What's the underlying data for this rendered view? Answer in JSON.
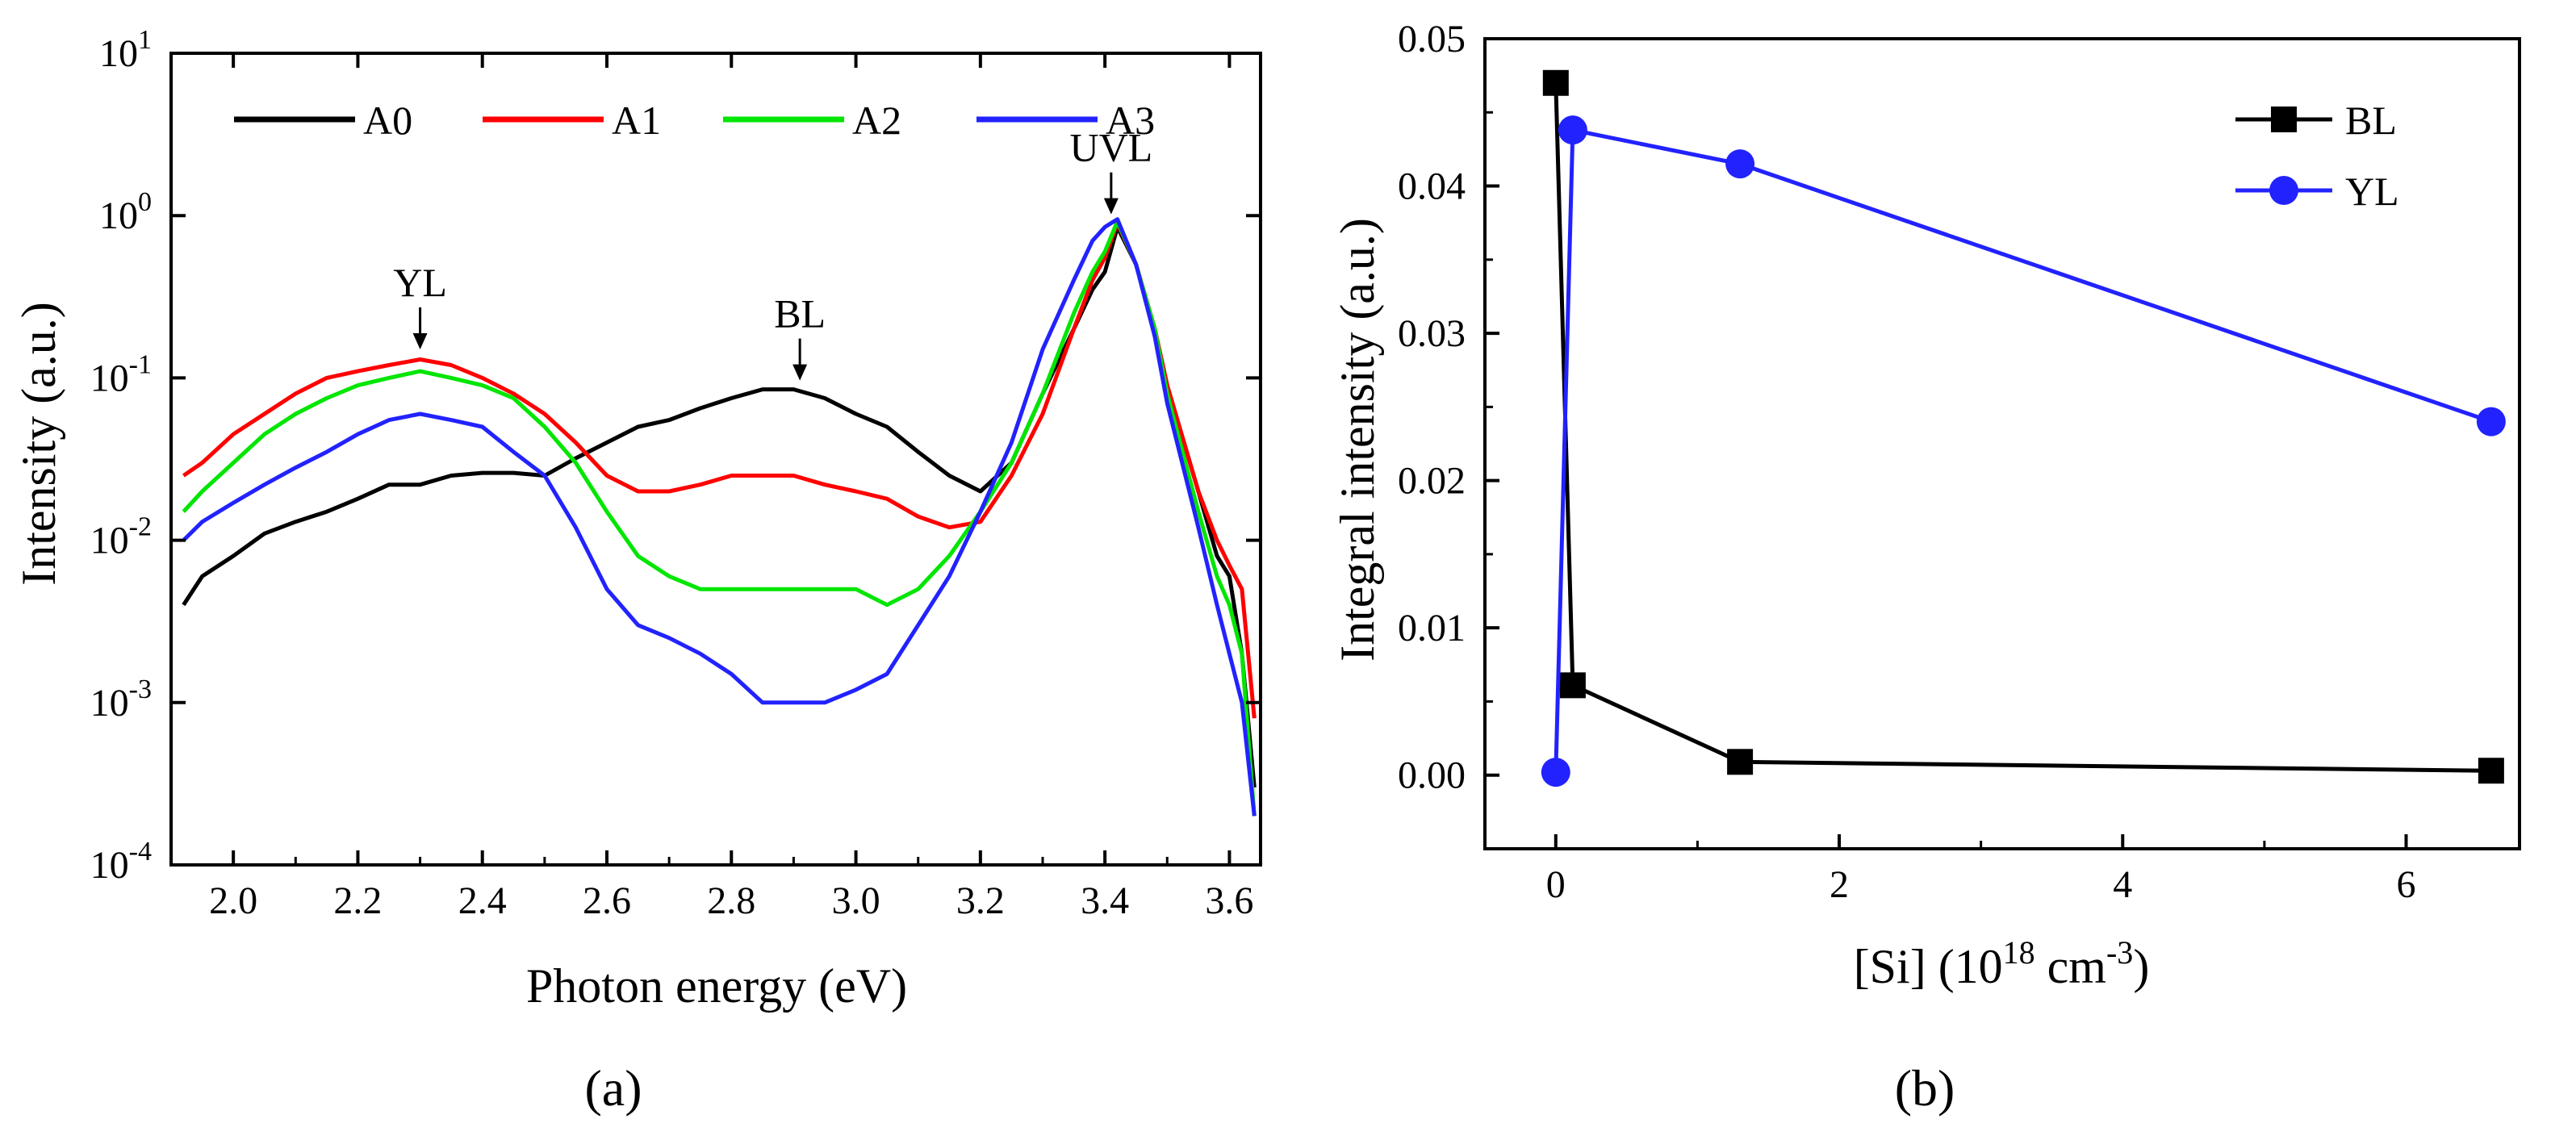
{
  "chart_data": [
    {
      "id": "a",
      "type": "line",
      "title": "",
      "caption": "(a)",
      "xlabel": "Photon energy (eV)",
      "ylabel": "Intensity (a.u.)",
      "yscale": "log",
      "xlim": [
        1.9,
        3.65
      ],
      "ylim": [
        0.0001,
        10
      ],
      "grid": false,
      "legend_position": "top",
      "x_ticks": [
        {
          "value": 2.0,
          "label": "2.0"
        },
        {
          "value": 2.2,
          "label": "2.2"
        },
        {
          "value": 2.4,
          "label": "2.4"
        },
        {
          "value": 2.6,
          "label": "2.6"
        },
        {
          "value": 2.8,
          "label": "2.8"
        },
        {
          "value": 3.0,
          "label": "3.0"
        },
        {
          "value": 3.2,
          "label": "3.2"
        },
        {
          "value": 3.4,
          "label": "3.4"
        },
        {
          "value": 3.6,
          "label": "3.6"
        }
      ],
      "y_ticks": [
        {
          "value": 10,
          "base": "10",
          "exp": "1"
        },
        {
          "value": 1,
          "base": "10",
          "exp": "0"
        },
        {
          "value": 0.1,
          "base": "10",
          "exp": "-1"
        },
        {
          "value": 0.01,
          "base": "10",
          "exp": "-2"
        },
        {
          "value": 0.001,
          "base": "10",
          "exp": "-3"
        },
        {
          "value": 0.0001,
          "base": "10",
          "exp": "-4"
        }
      ],
      "series": [
        {
          "name": "A0",
          "color": "#000000",
          "x": [
            1.92,
            1.95,
            2.0,
            2.05,
            2.1,
            2.15,
            2.2,
            2.25,
            2.3,
            2.35,
            2.4,
            2.45,
            2.5,
            2.55,
            2.6,
            2.65,
            2.7,
            2.75,
            2.8,
            2.85,
            2.9,
            2.95,
            3.0,
            3.05,
            3.1,
            3.15,
            3.2,
            3.25,
            3.3,
            3.35,
            3.38,
            3.4,
            3.42,
            3.45,
            3.48,
            3.5,
            3.55,
            3.58,
            3.6,
            3.62,
            3.64
          ],
          "y": [
            0.004,
            0.006,
            0.008,
            0.011,
            0.013,
            0.015,
            0.018,
            0.022,
            0.022,
            0.025,
            0.026,
            0.026,
            0.025,
            0.032,
            0.04,
            0.05,
            0.055,
            0.065,
            0.075,
            0.085,
            0.085,
            0.075,
            0.06,
            0.05,
            0.035,
            0.025,
            0.02,
            0.03,
            0.08,
            0.2,
            0.35,
            0.45,
            0.85,
            0.5,
            0.2,
            0.09,
            0.02,
            0.008,
            0.006,
            0.002,
            0.0003
          ]
        },
        {
          "name": "A1",
          "color": "#ff0000",
          "x": [
            1.92,
            1.95,
            2.0,
            2.05,
            2.1,
            2.15,
            2.2,
            2.25,
            2.3,
            2.35,
            2.4,
            2.45,
            2.5,
            2.55,
            2.6,
            2.65,
            2.7,
            2.75,
            2.8,
            2.85,
            2.9,
            2.95,
            3.0,
            3.05,
            3.1,
            3.15,
            3.2,
            3.25,
            3.3,
            3.35,
            3.38,
            3.4,
            3.42,
            3.45,
            3.48,
            3.5,
            3.55,
            3.58,
            3.6,
            3.62,
            3.64
          ],
          "y": [
            0.025,
            0.03,
            0.045,
            0.06,
            0.08,
            0.1,
            0.11,
            0.12,
            0.13,
            0.12,
            0.1,
            0.08,
            0.06,
            0.04,
            0.025,
            0.02,
            0.02,
            0.022,
            0.025,
            0.025,
            0.025,
            0.022,
            0.02,
            0.018,
            0.014,
            0.012,
            0.013,
            0.025,
            0.06,
            0.2,
            0.4,
            0.55,
            0.9,
            0.5,
            0.2,
            0.09,
            0.02,
            0.01,
            0.007,
            0.005,
            0.0008
          ]
        },
        {
          "name": "A2",
          "color": "#00e600",
          "x": [
            1.92,
            1.95,
            2.0,
            2.05,
            2.1,
            2.15,
            2.2,
            2.25,
            2.3,
            2.35,
            2.4,
            2.45,
            2.5,
            2.55,
            2.6,
            2.65,
            2.7,
            2.75,
            2.8,
            2.85,
            2.9,
            2.95,
            3.0,
            3.05,
            3.1,
            3.15,
            3.2,
            3.25,
            3.3,
            3.35,
            3.38,
            3.4,
            3.42,
            3.45,
            3.48,
            3.5,
            3.55,
            3.58,
            3.6,
            3.62,
            3.64
          ],
          "y": [
            0.015,
            0.02,
            0.03,
            0.045,
            0.06,
            0.075,
            0.09,
            0.1,
            0.11,
            0.1,
            0.09,
            0.075,
            0.05,
            0.03,
            0.015,
            0.008,
            0.006,
            0.005,
            0.005,
            0.005,
            0.005,
            0.005,
            0.005,
            0.004,
            0.005,
            0.008,
            0.015,
            0.03,
            0.08,
            0.25,
            0.45,
            0.6,
            0.92,
            0.5,
            0.2,
            0.08,
            0.015,
            0.006,
            0.004,
            0.002,
            0.0002
          ]
        },
        {
          "name": "A3",
          "color": "#2222ff",
          "x": [
            1.92,
            1.95,
            2.0,
            2.05,
            2.1,
            2.15,
            2.2,
            2.25,
            2.3,
            2.35,
            2.4,
            2.45,
            2.5,
            2.55,
            2.6,
            2.65,
            2.7,
            2.75,
            2.8,
            2.85,
            2.9,
            2.95,
            3.0,
            3.05,
            3.1,
            3.15,
            3.2,
            3.25,
            3.3,
            3.35,
            3.38,
            3.4,
            3.42,
            3.45,
            3.48,
            3.5,
            3.55,
            3.58,
            3.6,
            3.62,
            3.64
          ],
          "y": [
            0.01,
            0.013,
            0.017,
            0.022,
            0.028,
            0.035,
            0.045,
            0.055,
            0.06,
            0.055,
            0.05,
            0.035,
            0.025,
            0.012,
            0.005,
            0.003,
            0.0025,
            0.002,
            0.0015,
            0.001,
            0.001,
            0.001,
            0.0012,
            0.0015,
            0.003,
            0.006,
            0.015,
            0.04,
            0.15,
            0.4,
            0.7,
            0.85,
            0.95,
            0.5,
            0.18,
            0.07,
            0.012,
            0.004,
            0.002,
            0.001,
            0.0002
          ]
        }
      ],
      "annotations": [
        {
          "text": "YL",
          "x": 2.3,
          "y": 0.14
        },
        {
          "text": "BL",
          "x": 2.91,
          "y": 0.09
        },
        {
          "text": "UVL",
          "x": 3.41,
          "y": 0.95
        }
      ]
    },
    {
      "id": "b",
      "type": "line",
      "title": "",
      "caption": "(b)",
      "xlabel_main": "[Si] (10",
      "xlabel_sup1": "18",
      "xlabel_mid": " cm",
      "xlabel_sup2": "-3",
      "xlabel_end": ")",
      "ylabel": "Integral intensity (a.u.)",
      "xlim": [
        -0.5,
        6.8
      ],
      "ylim": [
        -0.005,
        0.05
      ],
      "grid": false,
      "legend_position": "top-right",
      "x_ticks": [
        {
          "value": 0,
          "label": "0"
        },
        {
          "value": 2,
          "label": "2"
        },
        {
          "value": 4,
          "label": "4"
        },
        {
          "value": 6,
          "label": "6"
        }
      ],
      "y_ticks": [
        {
          "value": 0.0,
          "label": "0.00"
        },
        {
          "value": 0.01,
          "label": "0.01"
        },
        {
          "value": 0.02,
          "label": "0.02"
        },
        {
          "value": 0.03,
          "label": "0.03"
        },
        {
          "value": 0.04,
          "label": "0.04"
        },
        {
          "value": 0.05,
          "label": "0.05"
        }
      ],
      "series": [
        {
          "name": "BL",
          "color": "#000000",
          "marker": "square",
          "x": [
            0.0,
            0.12,
            1.3,
            6.6
          ],
          "y": [
            0.047,
            0.0061,
            0.0009,
            0.0003
          ]
        },
        {
          "name": "YL",
          "color": "#2222ff",
          "marker": "circle",
          "x": [
            0.0,
            0.12,
            1.3,
            6.6
          ],
          "y": [
            0.0002,
            0.0438,
            0.0415,
            0.024
          ]
        }
      ]
    }
  ]
}
